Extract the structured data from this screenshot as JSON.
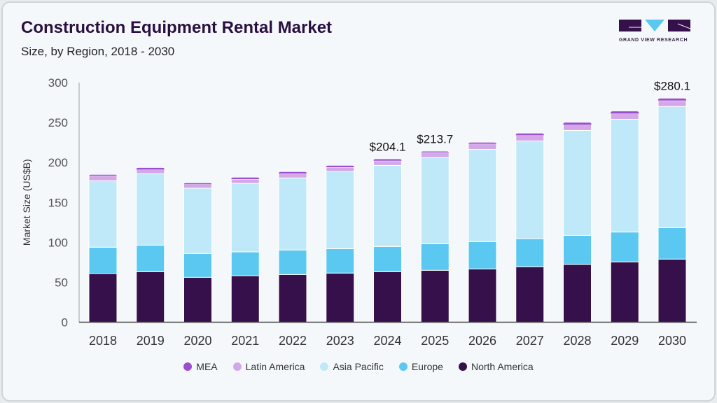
{
  "header": {
    "title": "Construction Equipment Rental Market",
    "subtitle": "Size, by Region, 2018 - 2030"
  },
  "logo": {
    "text": "GRAND VIEW RESEARCH"
  },
  "chart_data": {
    "type": "bar",
    "stacked": true,
    "ylabel": "Market Size (US$B)",
    "xlabel": "",
    "ylim": [
      0,
      300
    ],
    "yticks": [
      0,
      50,
      100,
      150,
      200,
      250,
      300
    ],
    "grid": false,
    "legend_position": "bottom",
    "categories": [
      "2018",
      "2019",
      "2020",
      "2021",
      "2022",
      "2023",
      "2024",
      "2025",
      "2026",
      "2027",
      "2028",
      "2029",
      "2030"
    ],
    "series": [
      {
        "name": "North America",
        "color": "#35104a",
        "values": [
          61.1,
          63.2,
          56.2,
          58.2,
          59.7,
          61.5,
          63.2,
          65.0,
          66.7,
          69.4,
          72.3,
          75.5,
          79.0
        ]
      },
      {
        "name": "Europe",
        "color": "#5bc8f2",
        "values": [
          32.8,
          33.3,
          29.8,
          29.8,
          30.7,
          30.6,
          31.5,
          33.2,
          34.2,
          35.2,
          36.4,
          37.4,
          39.4
        ]
      },
      {
        "name": "Asia Pacific",
        "color": "#bfe9f8",
        "values": [
          83.1,
          89.3,
          81.7,
          85.8,
          90.2,
          96.3,
          101.6,
          107.8,
          115.4,
          122.3,
          131.3,
          141.1,
          151.6
        ]
      },
      {
        "name": "Latin America",
        "color": "#d4a8e8",
        "values": [
          6.4,
          5.2,
          5.0,
          5.3,
          5.5,
          5.6,
          5.8,
          6.6,
          7.0,
          7.0,
          7.0,
          7.0,
          7.4
        ]
      },
      {
        "name": "MEA",
        "color": "#9b4fcf",
        "values": [
          1.2,
          2.3,
          1.4,
          2.0,
          2.0,
          2.0,
          2.0,
          1.1,
          1.6,
          2.4,
          2.9,
          3.0,
          2.7
        ]
      }
    ],
    "annotations": [
      {
        "category": "2024",
        "label": "$204.1"
      },
      {
        "category": "2025",
        "label": "$213.7"
      },
      {
        "category": "2030",
        "label": "$280.1"
      }
    ]
  },
  "legend": [
    "MEA",
    "Latin America",
    "Asia Pacific",
    "Europe",
    "North America"
  ]
}
